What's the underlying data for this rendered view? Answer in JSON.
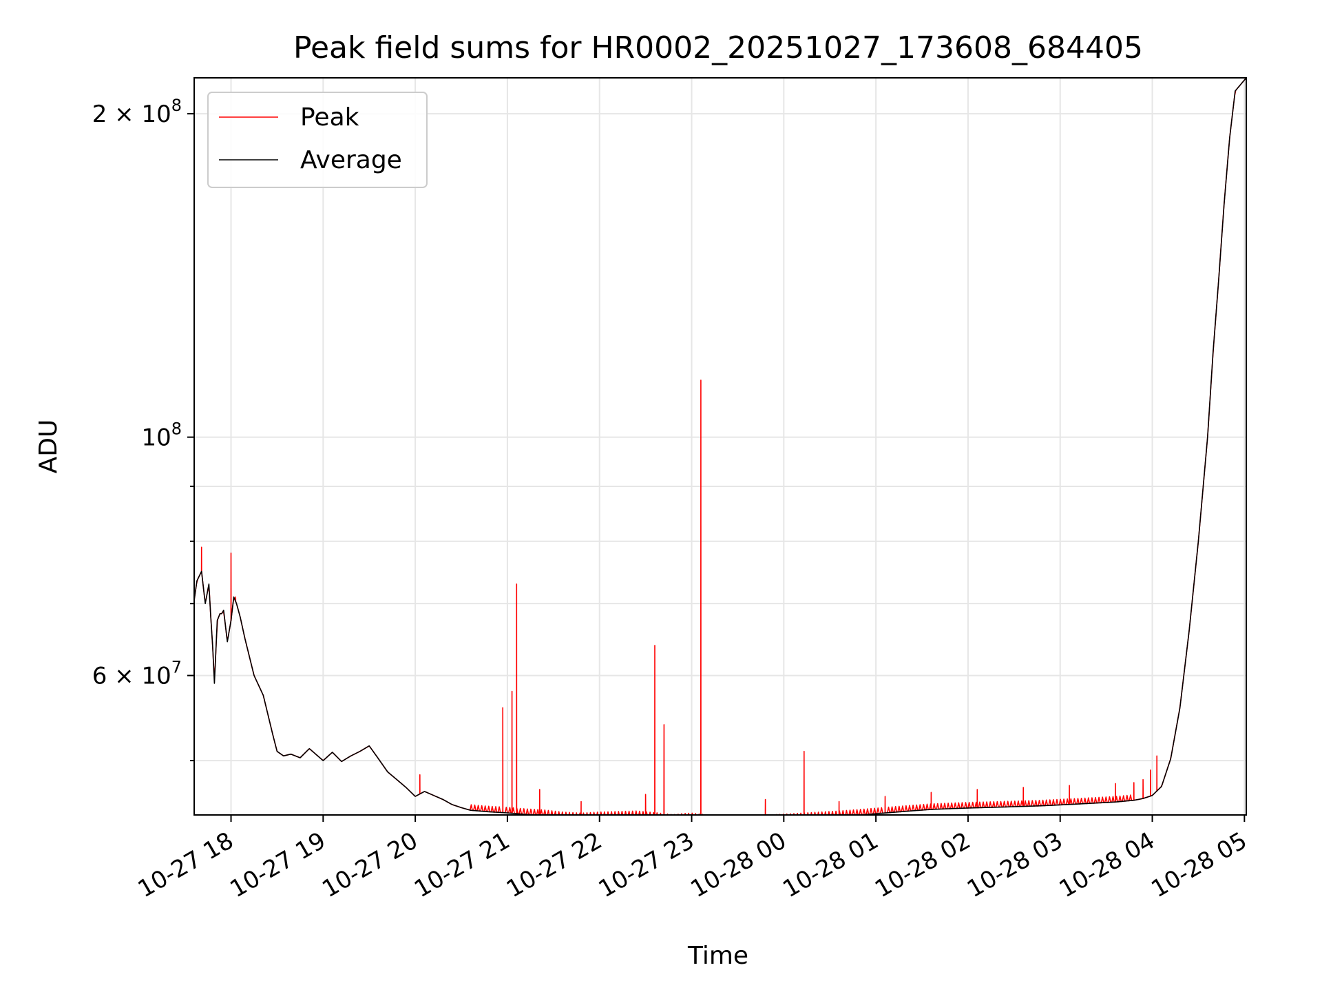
{
  "chart_data": {
    "type": "line",
    "title": "Peak field sums for HR0002_20251027_173608_684405",
    "xlabel": "Time",
    "ylabel": "ADU",
    "yscale": "log",
    "grid": true,
    "legend_position": "top-left",
    "x_unit": "hours since 2025-10-27 17:36",
    "xlim": [
      0,
      11.42
    ],
    "ylim": [
      44500000,
      216000000
    ],
    "x_ticks": [
      {
        "value": 0.4,
        "label": "10-27 18"
      },
      {
        "value": 1.4,
        "label": "10-27 19"
      },
      {
        "value": 2.4,
        "label": "10-27 20"
      },
      {
        "value": 3.4,
        "label": "10-27 21"
      },
      {
        "value": 4.4,
        "label": "10-27 22"
      },
      {
        "value": 5.4,
        "label": "10-27 23"
      },
      {
        "value": 6.4,
        "label": "10-28 00"
      },
      {
        "value": 7.4,
        "label": "10-28 01"
      },
      {
        "value": 8.4,
        "label": "10-28 02"
      },
      {
        "value": 9.4,
        "label": "10-28 03"
      },
      {
        "value": 10.4,
        "label": "10-28 04"
      },
      {
        "value": 11.4,
        "label": "10-28 05"
      }
    ],
    "y_major_ticks": [
      {
        "value": 60000000,
        "mantissa": "6",
        "exponent": "7"
      },
      {
        "value": 100000000,
        "mantissa": "",
        "exponent": "8"
      },
      {
        "value": 200000000,
        "mantissa": "2",
        "exponent": "8"
      }
    ],
    "y_minor_ticks": [
      50000000,
      70000000,
      80000000,
      90000000
    ],
    "tick_label_parts": {
      "times": "×",
      "base": "10"
    },
    "series": [
      {
        "name": "Average",
        "color": "#000000",
        "x": [
          0,
          0.03,
          0.08,
          0.12,
          0.16,
          0.18,
          0.2,
          0.22,
          0.25,
          0.28,
          0.3,
          0.32,
          0.36,
          0.4,
          0.43,
          0.46,
          0.5,
          0.55,
          0.65,
          0.75,
          0.85,
          0.9,
          0.97,
          1.05,
          1.15,
          1.25,
          1.33,
          1.4,
          1.5,
          1.6,
          1.7,
          1.8,
          1.9,
          2.0,
          2.1,
          2.15,
          2.2,
          2.3,
          2.4,
          2.5,
          2.6,
          2.7,
          2.8,
          2.9,
          3.0,
          3.2,
          3.4,
          3.6,
          3.8,
          4.0,
          4.2,
          4.4,
          4.6,
          4.8,
          5.0,
          5.2,
          5.3,
          5.4,
          5.5,
          5.6,
          5.8,
          6.0,
          6.2,
          6.4,
          6.6,
          6.8,
          7.0,
          7.2,
          7.4,
          7.6,
          7.8,
          8.0,
          8.4,
          8.8,
          9.2,
          9.6,
          10.0,
          10.2,
          10.3,
          10.4,
          10.5,
          10.6,
          10.7,
          10.8,
          10.9,
          11.0,
          11.06,
          11.12,
          11.18,
          11.24,
          11.3,
          11.42
        ],
        "values": [
          70500000,
          73500000,
          75000000,
          70000000,
          73000000,
          68000000,
          64000000,
          59000000,
          67500000,
          68500000,
          68500000,
          69000000,
          64500000,
          67500000,
          71000000,
          70000000,
          68000000,
          65000000,
          60000000,
          57500000,
          53000000,
          51000000,
          50500000,
          50700000,
          50300000,
          51300000,
          50600000,
          50000000,
          50900000,
          49900000,
          50500000,
          51000000,
          51600000,
          50200000,
          48800000,
          48400000,
          48000000,
          47200000,
          46300000,
          46800000,
          46400000,
          46000000,
          45500000,
          45200000,
          44950000,
          44800000,
          44700000,
          44550000,
          44450000,
          44250000,
          44150000,
          44250000,
          44300000,
          44350000,
          44200000,
          44000000,
          44100000,
          44150000,
          44050000,
          43950000,
          43900000,
          43850000,
          43950000,
          44050000,
          44150000,
          44250000,
          44350000,
          44480000,
          44620000,
          44760000,
          44900000,
          45030000,
          45170000,
          45270000,
          45380000,
          45560000,
          45750000,
          45920000,
          46100000,
          46400000,
          47300000,
          50200000,
          56000000,
          66000000,
          80000000,
          100000000,
          120000000,
          140000000,
          165000000,
          190000000,
          210000000,
          216000000
        ]
      },
      {
        "name": "Peak",
        "color": "#ff0000",
        "x": [
          0.08,
          0.4,
          0.45,
          2.45,
          3.35,
          3.45,
          3.5,
          3.75,
          4.2,
          4.9,
          5.0,
          5.1,
          5.5,
          6.2,
          6.62,
          7.0,
          7.5,
          8.0,
          8.5,
          9.0,
          9.5,
          10.0,
          10.2,
          10.3,
          10.38,
          10.45
        ],
        "values": [
          79000000,
          78000000,
          71000000,
          48500000,
          56000000,
          58000000,
          73000000,
          47000000,
          45800000,
          46500000,
          64000000,
          54000000,
          113000000,
          46000000,
          51000000,
          45800000,
          46300000,
          46700000,
          47000000,
          47200000,
          47400000,
          47600000,
          47700000,
          48000000,
          49000000,
          50500000
        ]
      }
    ]
  }
}
